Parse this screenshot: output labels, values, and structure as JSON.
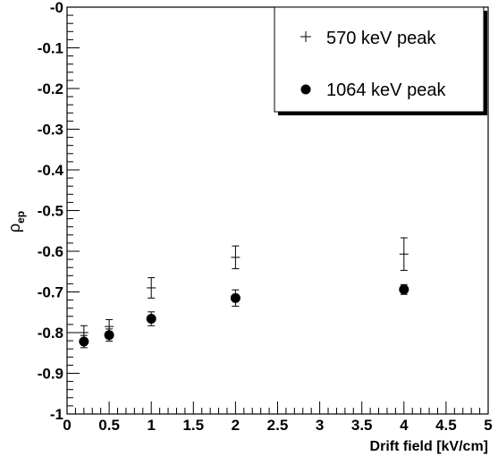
{
  "chart_data": {
    "type": "scatter",
    "title": "",
    "xlabel": "Drift field [kV/cm]",
    "ylabel": {
      "symbol": "ρ",
      "subscript": "ep"
    },
    "xlim": [
      0,
      5
    ],
    "ylim": [
      -1,
      0
    ],
    "grid": false,
    "legend_position": "top-right",
    "x_ticks": [
      {
        "value": 0,
        "label": "0"
      },
      {
        "value": 0.5,
        "label": "0.5"
      },
      {
        "value": 1,
        "label": "1"
      },
      {
        "value": 1.5,
        "label": "1.5"
      },
      {
        "value": 2,
        "label": "2"
      },
      {
        "value": 2.5,
        "label": "2.5"
      },
      {
        "value": 3,
        "label": "3"
      },
      {
        "value": 3.5,
        "label": "3.5"
      },
      {
        "value": 4,
        "label": "4"
      },
      {
        "value": 4.5,
        "label": "4.5"
      },
      {
        "value": 5,
        "label": "5"
      }
    ],
    "y_ticks": [
      {
        "value": 0,
        "label": "-0"
      },
      {
        "value": -0.1,
        "label": "-0.1"
      },
      {
        "value": -0.2,
        "label": "-0.2"
      },
      {
        "value": -0.3,
        "label": "-0.3"
      },
      {
        "value": -0.4,
        "label": "-0.4"
      },
      {
        "value": -0.5,
        "label": "-0.5"
      },
      {
        "value": -0.6,
        "label": "-0.6"
      },
      {
        "value": -0.7,
        "label": "-0.7"
      },
      {
        "value": -0.8,
        "label": "-0.8"
      },
      {
        "value": -0.9,
        "label": "-0.9"
      },
      {
        "value": -1,
        "label": "-1"
      }
    ],
    "series": [
      {
        "name": "570 keV peak",
        "marker": "plus",
        "color": "#000000",
        "points": [
          {
            "x": 0.2,
            "y": -0.8,
            "err": 0.017
          },
          {
            "x": 0.5,
            "y": -0.785,
            "err": 0.017
          },
          {
            "x": 1.0,
            "y": -0.69,
            "err": 0.025
          },
          {
            "x": 2.0,
            "y": -0.615,
            "err": 0.028
          },
          {
            "x": 4.0,
            "y": -0.607,
            "err": 0.04
          }
        ]
      },
      {
        "name": "1064 keV peak",
        "marker": "circle",
        "color": "#000000",
        "points": [
          {
            "x": 0.2,
            "y": -0.822,
            "err": 0.015
          },
          {
            "x": 0.5,
            "y": -0.806,
            "err": 0.015
          },
          {
            "x": 1.0,
            "y": -0.766,
            "err": 0.017
          },
          {
            "x": 2.0,
            "y": -0.715,
            "err": 0.02
          },
          {
            "x": 4.0,
            "y": -0.694,
            "err": 0.012
          }
        ]
      }
    ]
  }
}
